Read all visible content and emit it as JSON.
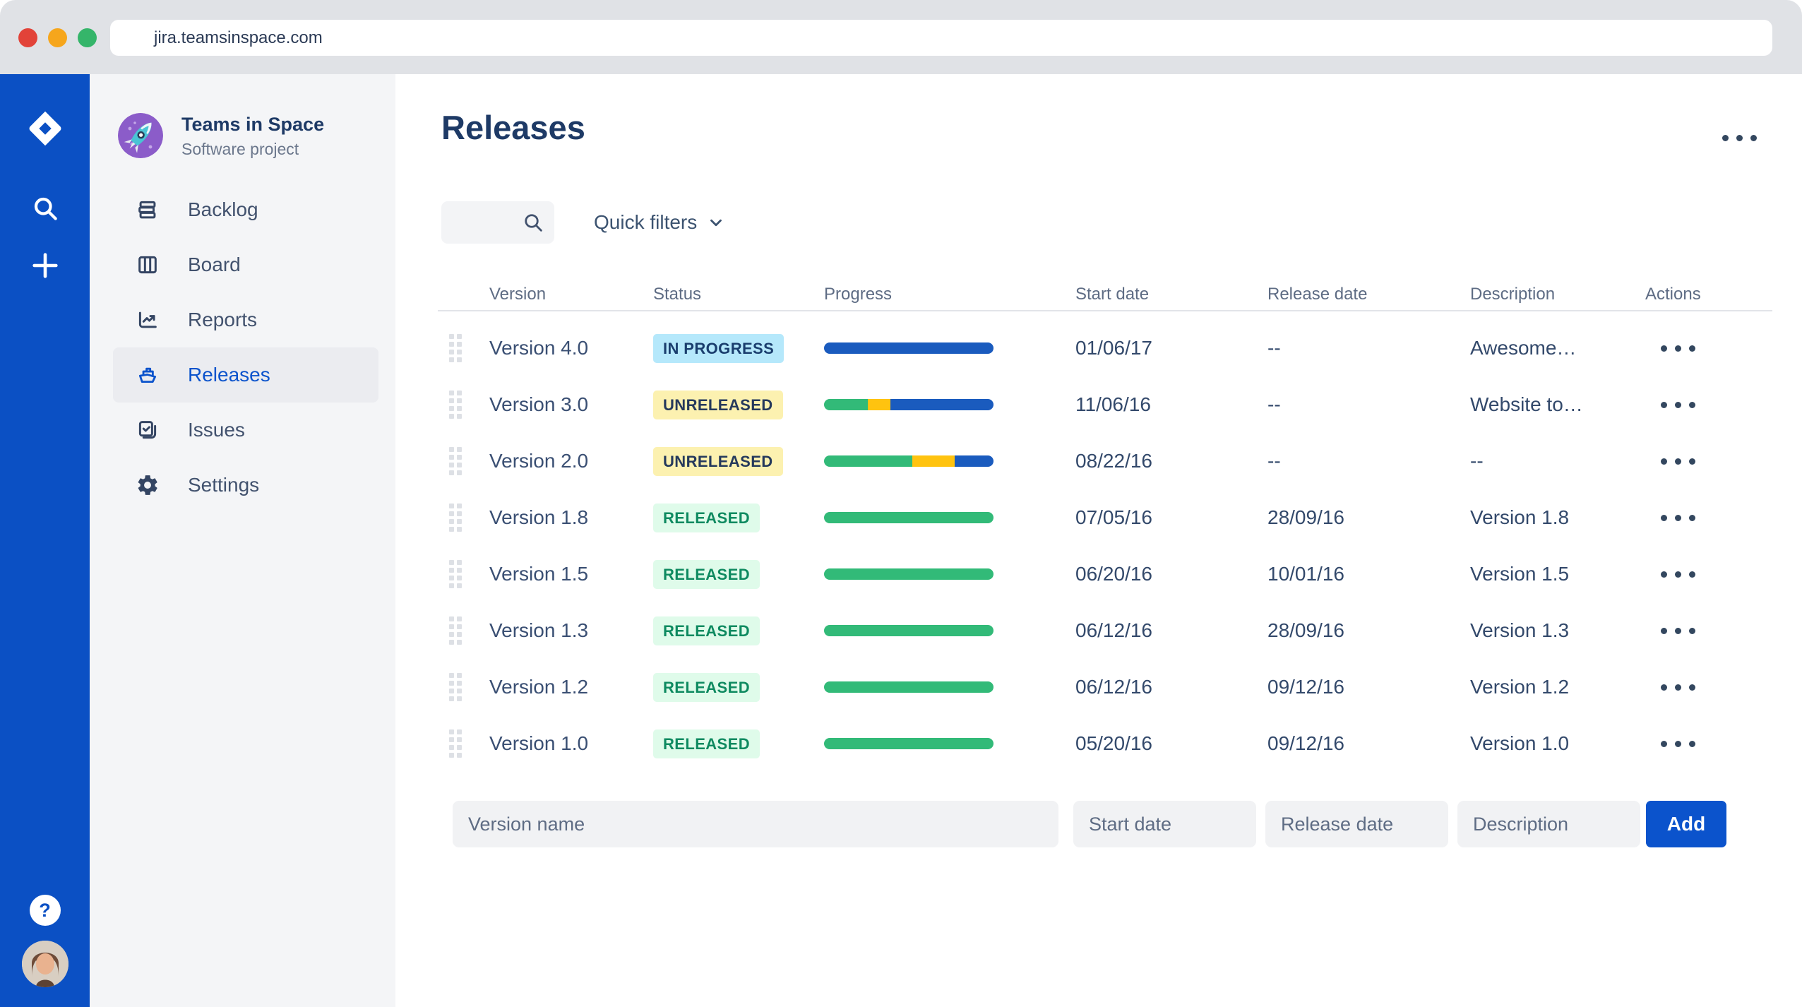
{
  "window": {
    "url": "jira.teamsinspace.com"
  },
  "project": {
    "name": "Teams in Space",
    "type": "Software project"
  },
  "rail": {
    "icons": [
      "jira-logo",
      "search-icon",
      "plus-icon"
    ],
    "help_label": "?"
  },
  "nav": {
    "items": [
      {
        "id": "backlog",
        "label": "Backlog",
        "icon": "backlog-icon",
        "active": false
      },
      {
        "id": "board",
        "label": "Board",
        "icon": "board-icon",
        "active": false
      },
      {
        "id": "reports",
        "label": "Reports",
        "icon": "reports-icon",
        "active": false
      },
      {
        "id": "releases",
        "label": "Releases",
        "icon": "ship-icon",
        "active": true
      },
      {
        "id": "issues",
        "label": "Issues",
        "icon": "issues-icon",
        "active": false
      },
      {
        "id": "settings",
        "label": "Settings",
        "icon": "gear-icon",
        "active": false
      }
    ]
  },
  "main": {
    "title": "Releases",
    "quick_filters_label": "Quick filters",
    "table": {
      "columns": [
        "Version",
        "Status",
        "Progress",
        "Start date",
        "Release date",
        "Description",
        "Actions"
      ],
      "rows": [
        {
          "version": "Version 4.0",
          "status": "IN PROGRESS",
          "status_type": "in-progress",
          "progress": [
            {
              "color": "blue",
              "pct": 100
            }
          ],
          "start": "01/06/17",
          "release": "--",
          "description": "Awesome…"
        },
        {
          "version": "Version 3.0",
          "status": "UNRELEASED",
          "status_type": "unreleased",
          "progress": [
            {
              "color": "green",
              "pct": 26
            },
            {
              "color": "yellow",
              "pct": 13
            },
            {
              "color": "blue",
              "pct": 61
            }
          ],
          "start": "11/06/16",
          "release": "--",
          "description": "Website to…"
        },
        {
          "version": "Version 2.0",
          "status": "UNRELEASED",
          "status_type": "unreleased",
          "progress": [
            {
              "color": "green",
              "pct": 52
            },
            {
              "color": "yellow",
              "pct": 25
            },
            {
              "color": "blue",
              "pct": 23
            }
          ],
          "start": "08/22/16",
          "release": "--",
          "description": "--"
        },
        {
          "version": "Version 1.8",
          "status": "RELEASED",
          "status_type": "released",
          "progress": [
            {
              "color": "green",
              "pct": 100
            }
          ],
          "start": "07/05/16",
          "release": "28/09/16",
          "description": "Version 1.8"
        },
        {
          "version": "Version 1.5",
          "status": "RELEASED",
          "status_type": "released",
          "progress": [
            {
              "color": "green",
              "pct": 100
            }
          ],
          "start": "06/20/16",
          "release": "10/01/16",
          "description": "Version 1.5"
        },
        {
          "version": "Version 1.3",
          "status": "RELEASED",
          "status_type": "released",
          "progress": [
            {
              "color": "green",
              "pct": 100
            }
          ],
          "start": "06/12/16",
          "release": "28/09/16",
          "description": "Version 1.3"
        },
        {
          "version": "Version 1.2",
          "status": "RELEASED",
          "status_type": "released",
          "progress": [
            {
              "color": "green",
              "pct": 100
            }
          ],
          "start": "06/12/16",
          "release": "09/12/16",
          "description": "Version 1.2"
        },
        {
          "version": "Version 1.0",
          "status": "RELEASED",
          "status_type": "released",
          "progress": [
            {
              "color": "green",
              "pct": 100
            }
          ],
          "start": "05/20/16",
          "release": "09/12/16",
          "description": "Version 1.0"
        }
      ]
    },
    "form": {
      "version_placeholder": "Version name",
      "start_placeholder": "Start date",
      "release_placeholder": "Release date",
      "description_placeholder": "Description",
      "add_label": "Add"
    }
  },
  "colors": {
    "accent_blue": "#0B53CC",
    "progress_green": "#32BA78",
    "progress_yellow": "#FFC30F",
    "progress_blue": "#1A5BBE",
    "badge_inprogress_bg": "#B5E8FB",
    "badge_unreleased_bg": "#FCF1B0",
    "badge_released_bg": "#DFFBEA",
    "traffic_red": "#E24339",
    "traffic_yellow": "#F6A61C",
    "traffic_green": "#35B56A"
  }
}
